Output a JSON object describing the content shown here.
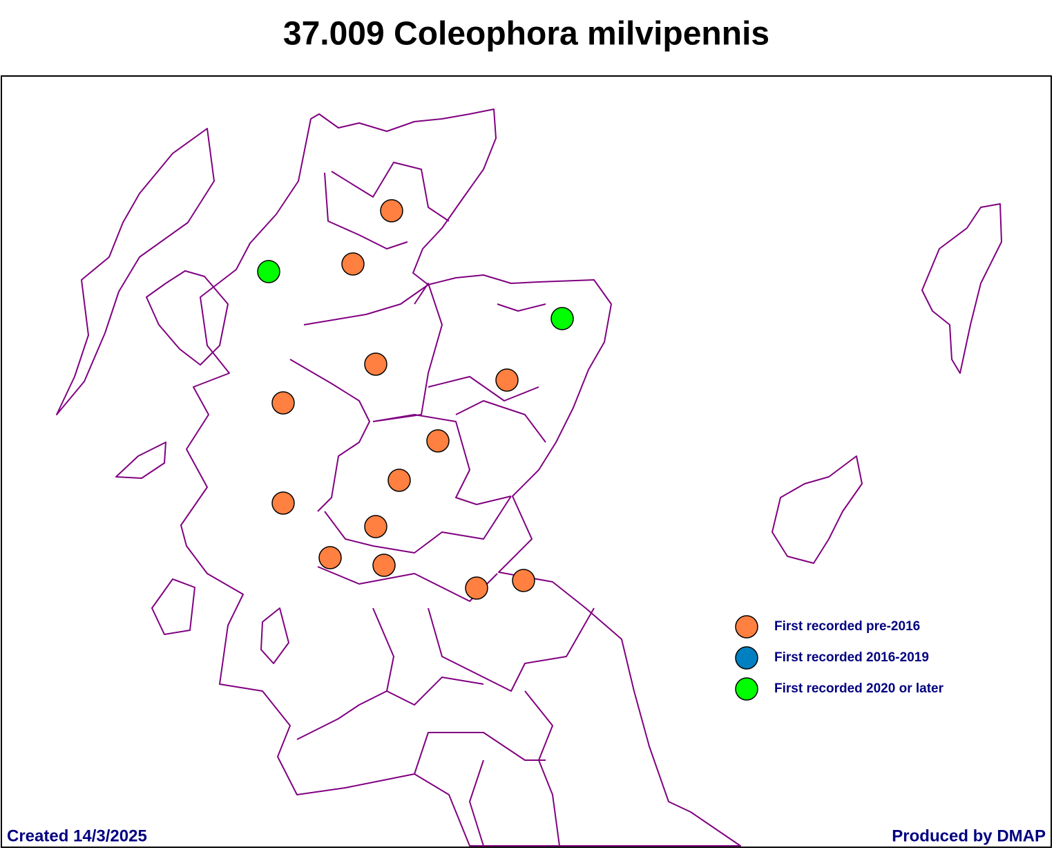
{
  "header": {
    "title": "37.009 Coleophora milvipennis"
  },
  "legend": [
    {
      "label": "First recorded pre-2016",
      "color": "#ff8040"
    },
    {
      "label": "First recorded 2016-2019",
      "color": "#0080c0"
    },
    {
      "label": "First recorded 2020 or later",
      "color": "#00ff00"
    }
  ],
  "footer": {
    "created": "Created 14/3/2025",
    "produced": "Produced by DMAP"
  }
}
